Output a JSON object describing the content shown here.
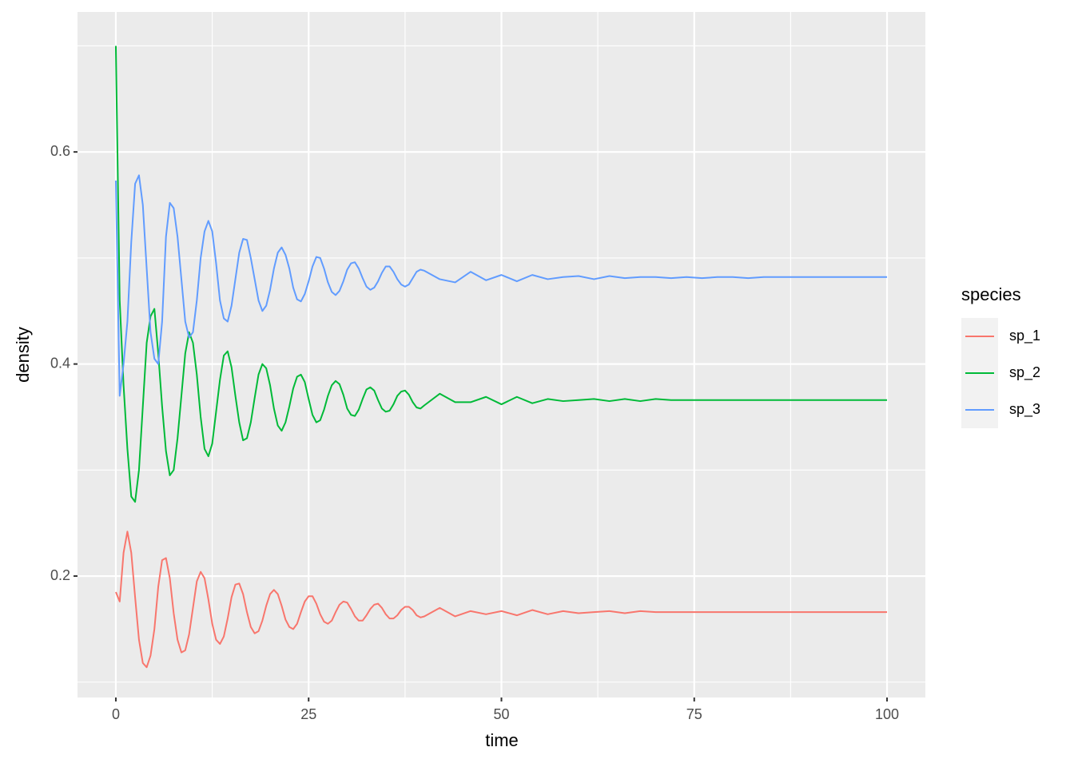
{
  "chart_data": {
    "type": "line",
    "x_label": "time",
    "y_label": "density",
    "legend_title": "species",
    "legend_position": "right",
    "xlim": [
      -4.97,
      104.97
    ],
    "ylim": [
      0.0855,
      0.732
    ],
    "xticks": [
      0,
      25,
      50,
      75,
      100
    ],
    "yticks": [
      0.2,
      0.4,
      0.6
    ],
    "x_minor_grid": [
      12.5,
      37.5,
      62.5,
      87.5
    ],
    "y_minor_grid": [
      0.1,
      0.3,
      0.5,
      0.7
    ],
    "grid": true,
    "x": [
      0,
      0.5,
      1,
      1.5,
      2,
      2.5,
      3,
      3.5,
      4,
      4.5,
      5,
      5.5,
      6,
      6.5,
      7,
      7.5,
      8,
      8.5,
      9,
      9.5,
      10,
      10.5,
      11,
      11.5,
      12,
      12.5,
      13,
      13.5,
      14,
      14.5,
      15,
      15.5,
      16,
      16.5,
      17,
      17.5,
      18,
      18.5,
      19,
      19.5,
      20,
      20.5,
      21,
      21.5,
      22,
      22.5,
      23,
      23.5,
      24,
      24.5,
      25,
      25.5,
      26,
      26.5,
      27,
      27.5,
      28,
      28.5,
      29,
      29.5,
      30,
      30.5,
      31,
      31.5,
      32,
      32.5,
      33,
      33.5,
      34,
      34.5,
      35,
      35.5,
      36,
      36.5,
      37,
      37.5,
      38,
      38.5,
      39,
      39.5,
      40,
      42,
      44,
      46,
      48,
      50,
      52,
      54,
      56,
      58,
      60,
      62,
      64,
      66,
      68,
      70,
      72,
      74,
      76,
      78,
      80,
      82,
      84,
      86,
      88,
      90,
      92,
      94,
      96,
      98,
      100
    ],
    "series": [
      {
        "name": "sp_1",
        "color": "#F8766D",
        "values": [
          0.185,
          0.176,
          0.222,
          0.242,
          0.222,
          0.18,
          0.14,
          0.118,
          0.114,
          0.125,
          0.15,
          0.19,
          0.215,
          0.217,
          0.198,
          0.165,
          0.14,
          0.128,
          0.13,
          0.145,
          0.17,
          0.195,
          0.204,
          0.198,
          0.178,
          0.155,
          0.14,
          0.136,
          0.143,
          0.16,
          0.18,
          0.192,
          0.193,
          0.183,
          0.166,
          0.152,
          0.146,
          0.148,
          0.158,
          0.172,
          0.183,
          0.187,
          0.183,
          0.172,
          0.159,
          0.152,
          0.15,
          0.155,
          0.166,
          0.176,
          0.181,
          0.181,
          0.174,
          0.164,
          0.157,
          0.155,
          0.158,
          0.166,
          0.173,
          0.176,
          0.175,
          0.169,
          0.162,
          0.158,
          0.158,
          0.163,
          0.169,
          0.173,
          0.174,
          0.17,
          0.164,
          0.16,
          0.16,
          0.163,
          0.168,
          0.171,
          0.171,
          0.168,
          0.163,
          0.161,
          0.162,
          0.17,
          0.162,
          0.167,
          0.164,
          0.167,
          0.163,
          0.168,
          0.164,
          0.167,
          0.165,
          0.166,
          0.167,
          0.165,
          0.167,
          0.166,
          0.166,
          0.166,
          0.166,
          0.166,
          0.166,
          0.166,
          0.166,
          0.166,
          0.166,
          0.166,
          0.166,
          0.166,
          0.166,
          0.166,
          0.166
        ]
      },
      {
        "name": "sp_2",
        "color": "#00BA38",
        "values": [
          0.7,
          0.46,
          0.38,
          0.32,
          0.275,
          0.27,
          0.3,
          0.36,
          0.42,
          0.445,
          0.452,
          0.41,
          0.36,
          0.318,
          0.295,
          0.3,
          0.33,
          0.37,
          0.41,
          0.43,
          0.42,
          0.39,
          0.35,
          0.32,
          0.313,
          0.325,
          0.355,
          0.385,
          0.408,
          0.412,
          0.397,
          0.37,
          0.345,
          0.328,
          0.33,
          0.345,
          0.368,
          0.39,
          0.4,
          0.396,
          0.38,
          0.358,
          0.342,
          0.337,
          0.345,
          0.36,
          0.377,
          0.388,
          0.39,
          0.383,
          0.367,
          0.352,
          0.345,
          0.347,
          0.357,
          0.37,
          0.38,
          0.384,
          0.381,
          0.371,
          0.358,
          0.352,
          0.351,
          0.357,
          0.367,
          0.376,
          0.378,
          0.375,
          0.366,
          0.358,
          0.355,
          0.356,
          0.362,
          0.37,
          0.374,
          0.375,
          0.371,
          0.364,
          0.359,
          0.358,
          0.361,
          0.372,
          0.364,
          0.364,
          0.369,
          0.362,
          0.369,
          0.363,
          0.367,
          0.365,
          0.366,
          0.367,
          0.365,
          0.367,
          0.365,
          0.367,
          0.366,
          0.366,
          0.366,
          0.366,
          0.366,
          0.366,
          0.366,
          0.366,
          0.366,
          0.366,
          0.366,
          0.366,
          0.366,
          0.366,
          0.366
        ]
      },
      {
        "name": "sp_3",
        "color": "#619CFF",
        "values": [
          0.573,
          0.37,
          0.4,
          0.44,
          0.515,
          0.57,
          0.578,
          0.55,
          0.49,
          0.43,
          0.405,
          0.4,
          0.44,
          0.52,
          0.552,
          0.547,
          0.52,
          0.48,
          0.44,
          0.425,
          0.43,
          0.46,
          0.5,
          0.525,
          0.535,
          0.525,
          0.495,
          0.46,
          0.443,
          0.44,
          0.455,
          0.48,
          0.505,
          0.518,
          0.517,
          0.5,
          0.48,
          0.46,
          0.45,
          0.455,
          0.47,
          0.49,
          0.505,
          0.51,
          0.503,
          0.49,
          0.472,
          0.461,
          0.459,
          0.466,
          0.478,
          0.492,
          0.501,
          0.5,
          0.49,
          0.477,
          0.468,
          0.465,
          0.469,
          0.478,
          0.489,
          0.495,
          0.496,
          0.49,
          0.481,
          0.473,
          0.47,
          0.472,
          0.478,
          0.486,
          0.492,
          0.492,
          0.487,
          0.48,
          0.475,
          0.473,
          0.475,
          0.481,
          0.487,
          0.489,
          0.488,
          0.48,
          0.477,
          0.487,
          0.479,
          0.484,
          0.478,
          0.484,
          0.48,
          0.482,
          0.483,
          0.48,
          0.483,
          0.481,
          0.482,
          0.482,
          0.481,
          0.482,
          0.481,
          0.482,
          0.482,
          0.481,
          0.482,
          0.482,
          0.482,
          0.482,
          0.482,
          0.482,
          0.482,
          0.482,
          0.482
        ]
      }
    ]
  }
}
